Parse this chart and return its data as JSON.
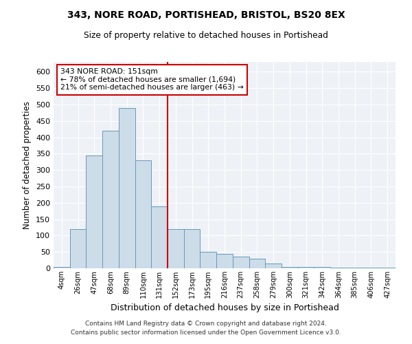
{
  "title": "343, NORE ROAD, PORTISHEAD, BRISTOL, BS20 8EX",
  "subtitle": "Size of property relative to detached houses in Portishead",
  "xlabel": "Distribution of detached houses by size in Portishead",
  "ylabel": "Number of detached properties",
  "bin_labels": [
    "4sqm",
    "26sqm",
    "47sqm",
    "68sqm",
    "89sqm",
    "110sqm",
    "131sqm",
    "152sqm",
    "173sqm",
    "195sqm",
    "216sqm",
    "237sqm",
    "258sqm",
    "279sqm",
    "300sqm",
    "321sqm",
    "342sqm",
    "364sqm",
    "385sqm",
    "406sqm",
    "427sqm"
  ],
  "bar_heights": [
    4,
    120,
    345,
    420,
    490,
    330,
    190,
    120,
    120,
    50,
    45,
    35,
    30,
    15,
    5,
    5,
    5,
    3,
    3,
    2,
    2
  ],
  "bar_color": "#ccdce8",
  "bar_edge_color": "#6699bb",
  "reference_line_color": "#cc0000",
  "annotation_text": "343 NORE ROAD: 151sqm\n← 78% of detached houses are smaller (1,694)\n21% of semi-detached houses are larger (463) →",
  "annotation_box_color": "#ffffff",
  "annotation_box_edge_color": "#cc0000",
  "ylim": [
    0,
    630
  ],
  "yticks": [
    0,
    50,
    100,
    150,
    200,
    250,
    300,
    350,
    400,
    450,
    500,
    550,
    600
  ],
  "bg_color": "#eef2f7",
  "grid_color": "#ffffff",
  "footer1": "Contains HM Land Registry data © Crown copyright and database right 2024.",
  "footer2": "Contains public sector information licensed under the Open Government Licence v3.0."
}
